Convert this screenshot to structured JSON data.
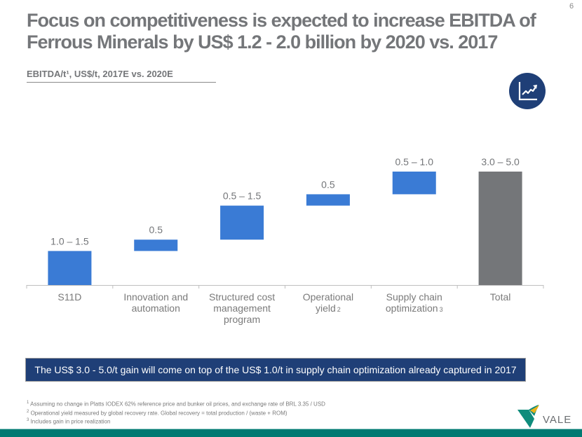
{
  "header": {
    "title": "Focus on competitiveness is expected to increase EBITDA of Ferrous Minerals by US$ 1.2 - 2.0 billion by 2020 vs. 2017",
    "page_number": "6",
    "subtitle": "EBITDA/t¹, US$/t, 2017E vs. 2020E"
  },
  "icons": {
    "chart_icon": "growth-chart-icon"
  },
  "chart_data": {
    "type": "bar",
    "subtype": "waterfall",
    "title": "EBITDA/t¹, US$/t, 2017E vs. 2020E",
    "xlabel": "",
    "ylabel": "",
    "ylim": [
      0,
      5.0
    ],
    "grid": false,
    "categories": [
      {
        "label_lines": [
          "S11D"
        ],
        "sup": ""
      },
      {
        "label_lines": [
          "Innovation and",
          "automation"
        ],
        "sup": ""
      },
      {
        "label_lines": [
          "Structured cost",
          "management",
          "program"
        ],
        "sup": ""
      },
      {
        "label_lines": [
          "Operational",
          "yield"
        ],
        "sup": "2"
      },
      {
        "label_lines": [
          "Supply chain",
          "optimization"
        ],
        "sup": "3"
      },
      {
        "label_lines": [
          "Total"
        ],
        "sup": ""
      }
    ],
    "bars": [
      {
        "category": "S11D",
        "kind": "increment",
        "low": 1.0,
        "high": 1.5,
        "drawn_value": 1.5,
        "label": "1.0 – 1.5"
      },
      {
        "category": "Innovation and automation",
        "kind": "increment",
        "low": 0.5,
        "high": 0.5,
        "drawn_value": 0.5,
        "label": "0.5"
      },
      {
        "category": "Structured cost management program",
        "kind": "increment",
        "low": 0.5,
        "high": 1.5,
        "drawn_value": 1.5,
        "label": "0.5 – 1.5"
      },
      {
        "category": "Operational yield",
        "kind": "increment",
        "low": 0.5,
        "high": 0.5,
        "drawn_value": 0.5,
        "label": "0.5"
      },
      {
        "category": "Supply chain optimization",
        "kind": "increment",
        "low": 0.5,
        "high": 1.0,
        "drawn_value": 1.0,
        "label": "0.5 – 1.0"
      },
      {
        "category": "Total",
        "kind": "total",
        "low": 3.0,
        "high": 5.0,
        "drawn_value": 5.0,
        "label": "3.0 – 5.0"
      }
    ],
    "colors": {
      "increment": "#3a7bd5",
      "total": "#747679"
    }
  },
  "banner": {
    "text": "The US$ 3.0 - 5.0/t gain will come on top of the US$ 1.0/t in supply chain optimization already captured in 2017"
  },
  "footnotes": [
    {
      "mark": "1",
      "text": "Assuming no change in Platts IODEX 62% reference price and bunker oil prices, and exchange rate of BRL 3.35 / USD"
    },
    {
      "mark": "2",
      "text": "Operational yield measured by global recovery rate. Global recovery = total production / (waste + ROM)"
    },
    {
      "mark": "3",
      "text": "Includes gain in price realization"
    }
  ],
  "logo": {
    "text": "VALE",
    "colors": {
      "teal": "#0f8c7c",
      "yellow": "#e9b21a",
      "text": "#6b6e71"
    }
  },
  "colors": {
    "title": "#747679",
    "banner_bg": "#1f3f77",
    "bottom_bar": "#007a72"
  }
}
